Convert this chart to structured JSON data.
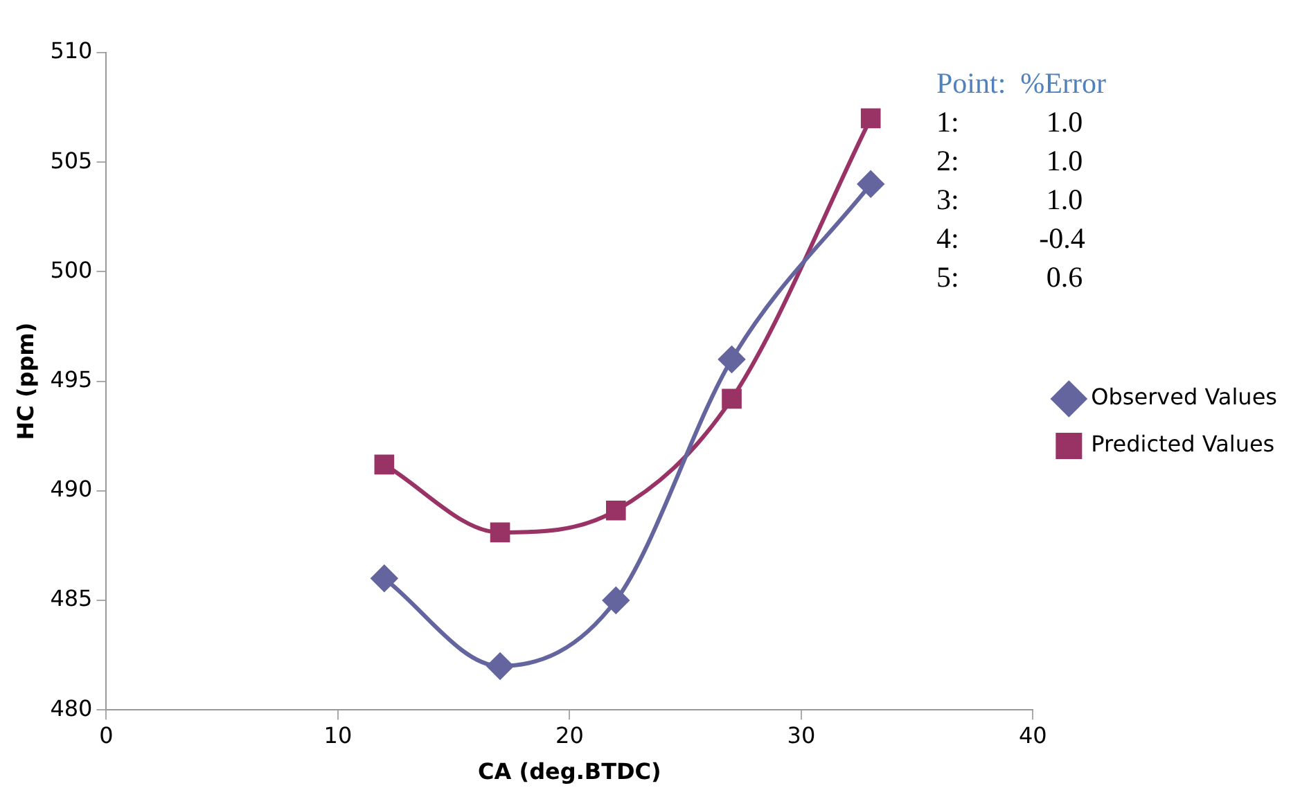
{
  "chart_data": {
    "type": "line",
    "xlabel": "CA (deg.BTDC)",
    "ylabel": "HC (ppm)",
    "x": [
      12,
      17,
      22,
      27,
      33
    ],
    "series": [
      {
        "name": "Observed Values",
        "color": "#64659e",
        "marker": "diamond",
        "values": [
          486,
          482,
          485,
          496,
          504
        ]
      },
      {
        "name": "Predicted Values",
        "color": "#993366",
        "marker": "square",
        "values": [
          491.2,
          488.1,
          489.1,
          494.2,
          507
        ]
      }
    ],
    "xlim": [
      0,
      40
    ],
    "xticks": [
      0,
      10,
      20,
      30,
      40
    ],
    "ylim": [
      480,
      510
    ],
    "yticks": [
      480,
      485,
      490,
      495,
      500,
      505,
      510
    ],
    "grid": false,
    "legend": "right",
    "line_style": "solid",
    "annotations": [
      "Point:  %Error",
      "1:            1.0",
      "2:            1.0",
      "3:            1.0",
      "4:           -0.4",
      "5:            0.6"
    ]
  }
}
